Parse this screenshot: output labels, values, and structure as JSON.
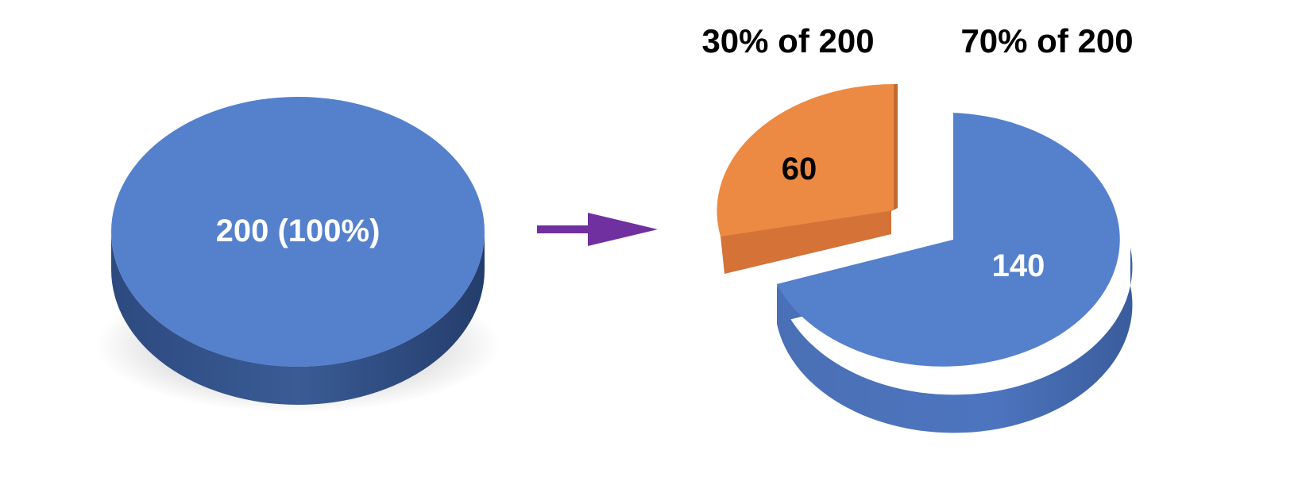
{
  "chart_data": [
    {
      "type": "pie",
      "slices": [
        {
          "label": "200 (100%)",
          "value": 200,
          "percent": 100,
          "color": "#5580cc"
        }
      ]
    },
    {
      "type": "pie",
      "slices": [
        {
          "label": "60",
          "value": 60,
          "percent": 30,
          "color": "#ec8a44",
          "header": "30% of 200"
        },
        {
          "label": "140",
          "value": 140,
          "percent": 70,
          "color": "#5580cc",
          "header": "70% of 200"
        }
      ],
      "exploded": true
    }
  ],
  "colors": {
    "blue_top": "#5580cc",
    "blue_side": "#2a4675",
    "orange_top": "#ec8a44",
    "orange_side": "#c2692f",
    "arrow": "#7030a0"
  },
  "icons": {
    "arrow": "right-arrow-icon"
  }
}
